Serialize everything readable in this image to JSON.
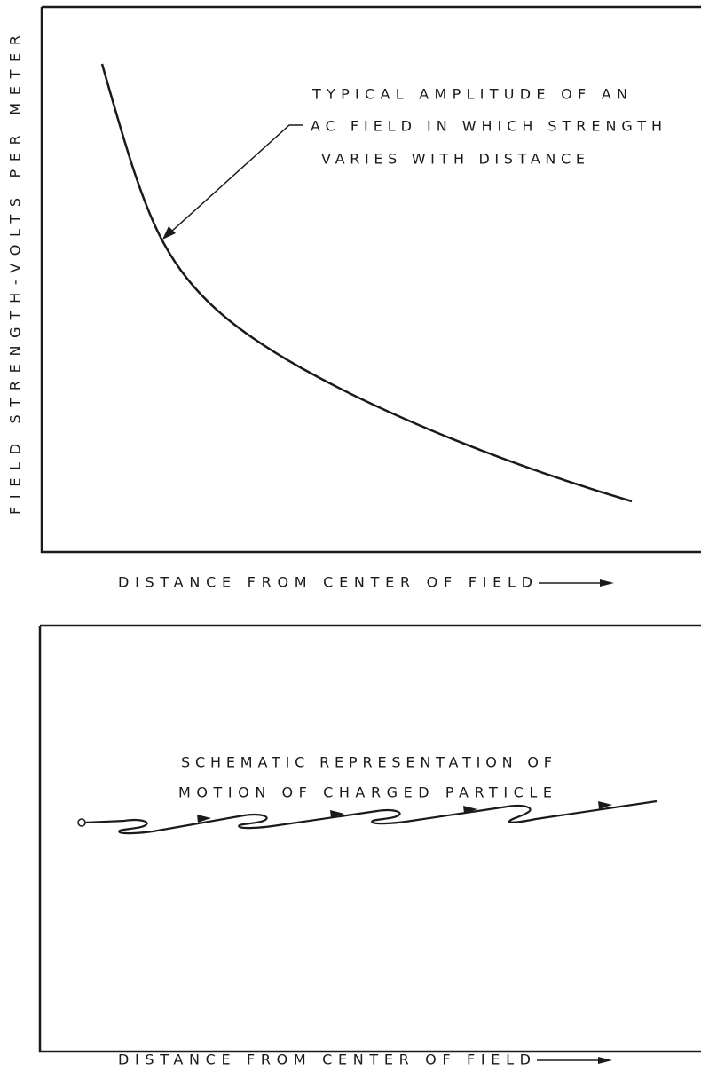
{
  "top_panel": {
    "y_axis_label": "FIELD STRENGTH-VOLTS PER METER",
    "annotation": [
      "TYPICAL AMPLITUDE OF AN",
      "AC FIELD IN WHICH STRENGTH",
      "VARIES WITH DISTANCE"
    ],
    "x_axis_label": "DISTANCE FROM CENTER OF FIELD"
  },
  "bottom_panel": {
    "caption": [
      "SCHEMATIC REPRESENTATION OF",
      "MOTION OF CHARGED PARTICLE"
    ],
    "x_axis_label": "DISTANCE FROM CENTER OF FIELD"
  }
}
